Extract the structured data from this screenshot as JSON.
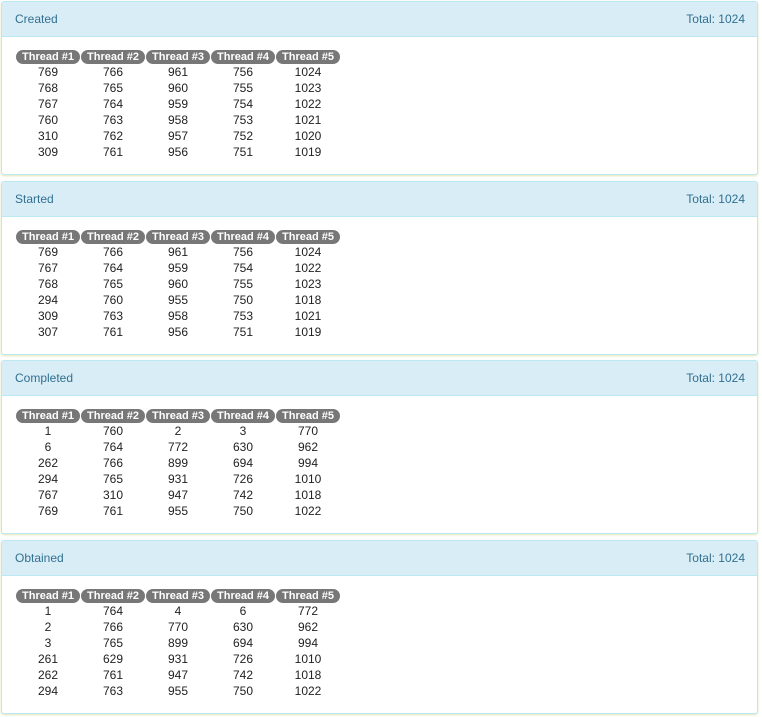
{
  "columns": [
    "Thread #1",
    "Thread #2",
    "Thread #3",
    "Thread #4",
    "Thread #5"
  ],
  "panels": [
    {
      "title": "Created",
      "total": "Total: 1024",
      "rows": [
        [
          "769",
          "766",
          "961",
          "756",
          "1024"
        ],
        [
          "768",
          "765",
          "960",
          "755",
          "1023"
        ],
        [
          "767",
          "764",
          "959",
          "754",
          "1022"
        ],
        [
          "760",
          "763",
          "958",
          "753",
          "1021"
        ],
        [
          "310",
          "762",
          "957",
          "752",
          "1020"
        ],
        [
          "309",
          "761",
          "956",
          "751",
          "1019"
        ]
      ]
    },
    {
      "title": "Started",
      "total": "Total: 1024",
      "rows": [
        [
          "769",
          "766",
          "961",
          "756",
          "1024"
        ],
        [
          "767",
          "764",
          "959",
          "754",
          "1022"
        ],
        [
          "768",
          "765",
          "960",
          "755",
          "1023"
        ],
        [
          "294",
          "760",
          "955",
          "750",
          "1018"
        ],
        [
          "309",
          "763",
          "958",
          "753",
          "1021"
        ],
        [
          "307",
          "761",
          "956",
          "751",
          "1019"
        ]
      ]
    },
    {
      "title": "Completed",
      "total": "Total: 1024",
      "rows": [
        [
          "1",
          "760",
          "2",
          "3",
          "770"
        ],
        [
          "6",
          "764",
          "772",
          "630",
          "962"
        ],
        [
          "262",
          "766",
          "899",
          "694",
          "994"
        ],
        [
          "294",
          "765",
          "931",
          "726",
          "1010"
        ],
        [
          "767",
          "310",
          "947",
          "742",
          "1018"
        ],
        [
          "769",
          "761",
          "955",
          "750",
          "1022"
        ]
      ]
    },
    {
      "title": "Obtained",
      "total": "Total: 1024",
      "rows": [
        [
          "1",
          "764",
          "4",
          "6",
          "772"
        ],
        [
          "2",
          "766",
          "770",
          "630",
          "962"
        ],
        [
          "3",
          "765",
          "899",
          "694",
          "994"
        ],
        [
          "261",
          "629",
          "931",
          "726",
          "1010"
        ],
        [
          "262",
          "761",
          "947",
          "742",
          "1018"
        ],
        [
          "294",
          "763",
          "955",
          "750",
          "1022"
        ]
      ]
    }
  ]
}
